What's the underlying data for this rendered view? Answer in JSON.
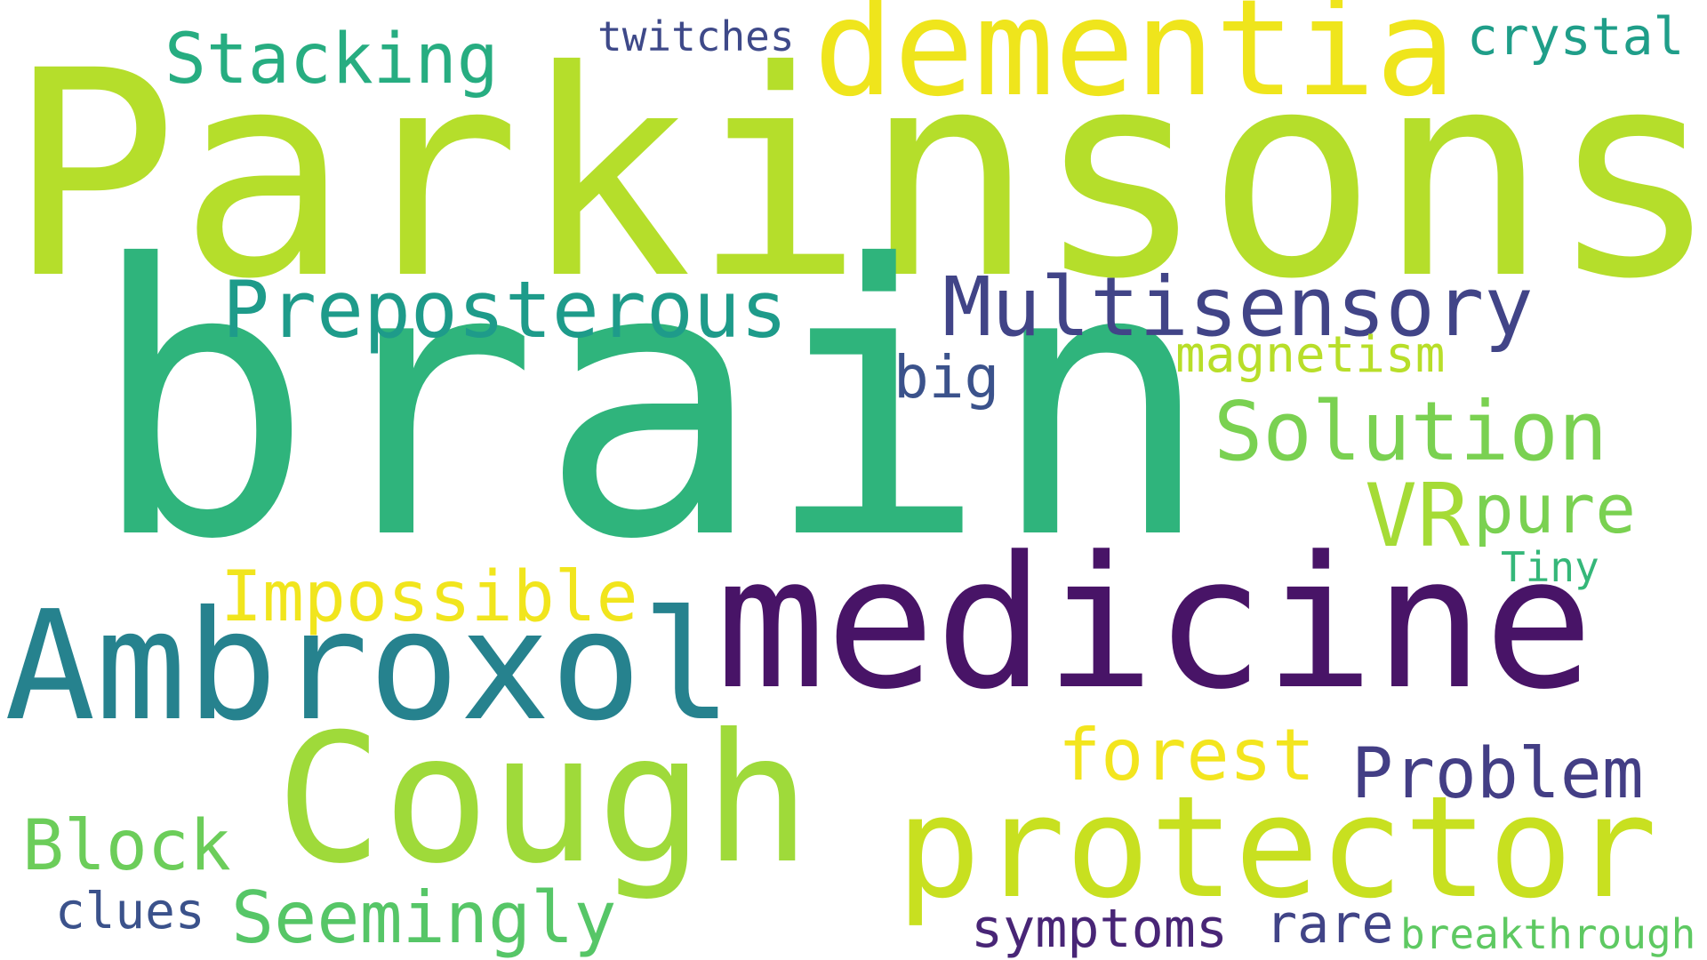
{
  "words": {
    "parkinsons": {
      "text": "Parkinsons",
      "color": "#b5de2b"
    },
    "brain": {
      "text": "brain",
      "color": "#2fb47c"
    },
    "dementia": {
      "text": "dementia",
      "color": "#efe51c"
    },
    "stacking": {
      "text": "Stacking",
      "color": "#27ad81"
    },
    "twitches": {
      "text": "twitches",
      "color": "#3e4989"
    },
    "crystal": {
      "text": "crystal",
      "color": "#1f9e89"
    },
    "preposterous": {
      "text": "Preposterous",
      "color": "#1e9b8a"
    },
    "multisensory": {
      "text": "Multisensory",
      "color": "#414487"
    },
    "magnetism": {
      "text": "magnetism",
      "color": "#b8de29"
    },
    "big": {
      "text": "big",
      "color": "#3b528b"
    },
    "solution": {
      "text": "Solution",
      "color": "#7ad151"
    },
    "vr": {
      "text": "VR",
      "color": "#a5db36"
    },
    "pure": {
      "text": "pure",
      "color": "#7ad151"
    },
    "tiny": {
      "text": "Tiny",
      "color": "#35b779"
    },
    "impossible": {
      "text": "Impossible",
      "color": "#f1e51d"
    },
    "ambroxol": {
      "text": "Ambroxol",
      "color": "#26828e"
    },
    "medicine": {
      "text": "medicine",
      "color": "#481467"
    },
    "cough": {
      "text": "Cough",
      "color": "#9fda3a"
    },
    "forest": {
      "text": "forest",
      "color": "#f3e51e"
    },
    "problem": {
      "text": "Problem",
      "color": "#433e85"
    },
    "protector": {
      "text": "protector",
      "color": "#c8e020"
    },
    "block": {
      "text": "Block",
      "color": "#6ccd5a"
    },
    "seemingly": {
      "text": "Seemingly",
      "color": "#56c667"
    },
    "clues": {
      "text": "clues",
      "color": "#3b528b"
    },
    "symptoms": {
      "text": "symptoms",
      "color": "#482576"
    },
    "rare": {
      "text": "rare",
      "color": "#414487"
    },
    "breakthrough": {
      "text": "breakthrough",
      "color": "#5ec962"
    }
  }
}
